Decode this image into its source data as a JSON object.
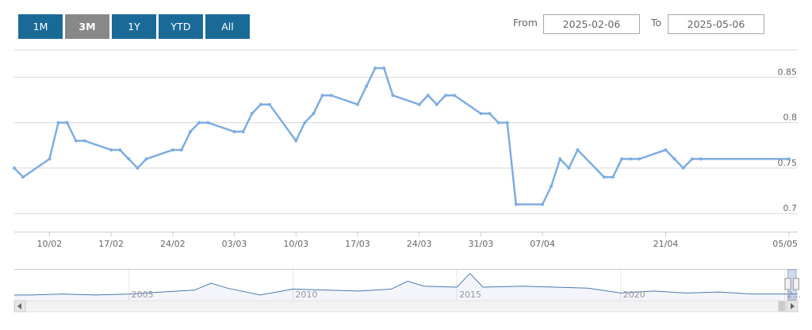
{
  "range_selector": {
    "buttons": [
      "1M",
      "3M",
      "1Y",
      "YTD",
      "All"
    ],
    "active": "3M"
  },
  "date_range": {
    "from_label": "From",
    "from_value": "2025-02-06",
    "to_label": "To",
    "to_value": "2025-05-06"
  },
  "colors": {
    "line": "#7eade0",
    "button": "#1a6a98",
    "button_active": "#888888",
    "grid": "#d8d8d8"
  },
  "chart_data": {
    "type": "line",
    "ylim": [
      0.68,
      0.88
    ],
    "yticks": [
      0.7,
      0.75,
      0.8,
      0.85
    ],
    "ytick_labels": [
      "0.7",
      "0.75",
      "0.8",
      "0.85"
    ],
    "x_start": "2025-02-06",
    "x_end": "2025-05-06",
    "xtick_labels": [
      {
        "date": "2025-02-10",
        "label": "10/02"
      },
      {
        "date": "2025-02-17",
        "label": "17/02"
      },
      {
        "date": "2025-02-24",
        "label": "24/02"
      },
      {
        "date": "2025-03-03",
        "label": "03/03"
      },
      {
        "date": "2025-03-10",
        "label": "10/03"
      },
      {
        "date": "2025-03-17",
        "label": "17/03"
      },
      {
        "date": "2025-03-24",
        "label": "24/03"
      },
      {
        "date": "2025-03-31",
        "label": "31/03"
      },
      {
        "date": "2025-04-07",
        "label": "07/04"
      },
      {
        "date": "2025-04-21",
        "label": "21/04"
      },
      {
        "date": "2025-05-05",
        "label": "05/05"
      }
    ],
    "points": [
      [
        "2025-02-06",
        0.75
      ],
      [
        "2025-02-07",
        0.74
      ],
      [
        "2025-02-10",
        0.76
      ],
      [
        "2025-02-11",
        0.8
      ],
      [
        "2025-02-12",
        0.8
      ],
      [
        "2025-02-13",
        0.78
      ],
      [
        "2025-02-14",
        0.78
      ],
      [
        "2025-02-17",
        0.77
      ],
      [
        "2025-02-18",
        0.77
      ],
      [
        "2025-02-19",
        0.76
      ],
      [
        "2025-02-20",
        0.75
      ],
      [
        "2025-02-21",
        0.76
      ],
      [
        "2025-02-24",
        0.77
      ],
      [
        "2025-02-25",
        0.77
      ],
      [
        "2025-02-26",
        0.79
      ],
      [
        "2025-02-27",
        0.8
      ],
      [
        "2025-02-28",
        0.8
      ],
      [
        "2025-03-03",
        0.79
      ],
      [
        "2025-03-04",
        0.79
      ],
      [
        "2025-03-05",
        0.81
      ],
      [
        "2025-03-06",
        0.82
      ],
      [
        "2025-03-07",
        0.82
      ],
      [
        "2025-03-10",
        0.78
      ],
      [
        "2025-03-11",
        0.8
      ],
      [
        "2025-03-12",
        0.81
      ],
      [
        "2025-03-13",
        0.83
      ],
      [
        "2025-03-14",
        0.83
      ],
      [
        "2025-03-17",
        0.82
      ],
      [
        "2025-03-18",
        0.84
      ],
      [
        "2025-03-19",
        0.86
      ],
      [
        "2025-03-20",
        0.86
      ],
      [
        "2025-03-21",
        0.83
      ],
      [
        "2025-03-24",
        0.82
      ],
      [
        "2025-03-25",
        0.83
      ],
      [
        "2025-03-26",
        0.82
      ],
      [
        "2025-03-27",
        0.83
      ],
      [
        "2025-03-28",
        0.83
      ],
      [
        "2025-03-31",
        0.81
      ],
      [
        "2025-04-01",
        0.81
      ],
      [
        "2025-04-02",
        0.8
      ],
      [
        "2025-04-03",
        0.8
      ],
      [
        "2025-04-04",
        0.71
      ],
      [
        "2025-04-07",
        0.71
      ],
      [
        "2025-04-08",
        0.73
      ],
      [
        "2025-04-09",
        0.76
      ],
      [
        "2025-04-10",
        0.75
      ],
      [
        "2025-04-11",
        0.77
      ],
      [
        "2025-04-14",
        0.74
      ],
      [
        "2025-04-15",
        0.74
      ],
      [
        "2025-04-16",
        0.76
      ],
      [
        "2025-04-17",
        0.76
      ],
      [
        "2025-04-18",
        0.76
      ],
      [
        "2025-04-21",
        0.77
      ],
      [
        "2025-04-22",
        0.76
      ],
      [
        "2025-04-23",
        0.75
      ],
      [
        "2025-04-24",
        0.76
      ],
      [
        "2025-04-25",
        0.76
      ],
      [
        "2025-05-05",
        0.76
      ]
    ]
  },
  "navigator": {
    "year_labels": [
      "2005",
      "2010",
      "2015",
      "2020",
      "2..."
    ],
    "year_start": 2001.5,
    "year_end": 2025.4,
    "selected_range": [
      "2025-02-06",
      "2025-05-06"
    ],
    "series": [
      [
        2001.5,
        0.71
      ],
      [
        2002.0,
        0.71
      ],
      [
        2003.0,
        0.72
      ],
      [
        2004.0,
        0.71
      ],
      [
        2005.0,
        0.72
      ],
      [
        2006.0,
        0.74
      ],
      [
        2007.0,
        0.76
      ],
      [
        2007.5,
        0.83
      ],
      [
        2008.0,
        0.78
      ],
      [
        2009.0,
        0.71
      ],
      [
        2010.0,
        0.77
      ],
      [
        2011.0,
        0.76
      ],
      [
        2012.0,
        0.75
      ],
      [
        2013.0,
        0.77
      ],
      [
        2013.5,
        0.85
      ],
      [
        2014.0,
        0.8
      ],
      [
        2015.0,
        0.79
      ],
      [
        2015.4,
        0.93
      ],
      [
        2015.8,
        0.79
      ],
      [
        2017.0,
        0.8
      ],
      [
        2018.0,
        0.79
      ],
      [
        2019.0,
        0.78
      ],
      [
        2020.0,
        0.73
      ],
      [
        2021.0,
        0.75
      ],
      [
        2022.0,
        0.73
      ],
      [
        2023.0,
        0.74
      ],
      [
        2024.0,
        0.72
      ],
      [
        2025.4,
        0.72
      ]
    ]
  }
}
